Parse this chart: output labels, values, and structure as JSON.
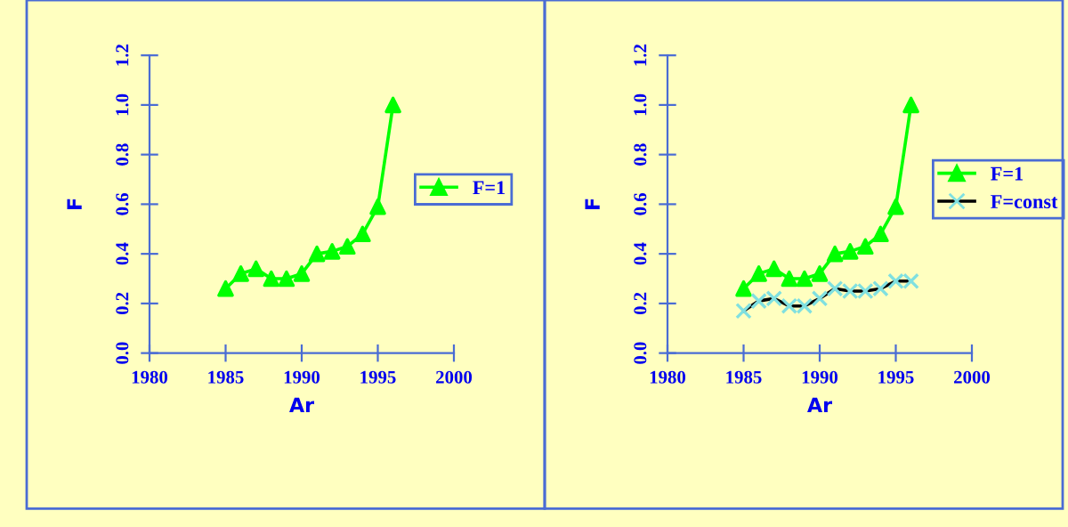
{
  "chart_data": [
    {
      "type": "line",
      "xlabel": "Ar",
      "ylabel": "F",
      "x": [
        1985,
        1986,
        1987,
        1988,
        1989,
        1990,
        1991,
        1992,
        1993,
        1994,
        1995,
        1996
      ],
      "xlim": [
        1980,
        2000
      ],
      "xticks": [
        1980,
        1985,
        1990,
        1995,
        2000
      ],
      "ylim": [
        0,
        1.2
      ],
      "yticks": [
        {
          "value": 0,
          "label": "0.0"
        },
        {
          "value": 0.2,
          "label": "0.2"
        },
        {
          "value": 0.4,
          "label": "0.4"
        },
        {
          "value": 0.6,
          "label": "0.6"
        },
        {
          "value": 0.8,
          "label": "0.8"
        },
        {
          "value": 1.0,
          "label": "1.0"
        },
        {
          "value": 1.2,
          "label": "1.2"
        }
      ],
      "legend": "right",
      "series": [
        {
          "name": "F=1",
          "color": "#00ff00",
          "marker": "triangle",
          "values": [
            0.26,
            0.32,
            0.34,
            0.3,
            0.3,
            0.32,
            0.4,
            0.41,
            0.43,
            0.48,
            0.59,
            1.0
          ]
        }
      ]
    },
    {
      "type": "line",
      "xlabel": "Ar",
      "ylabel": "F",
      "x": [
        1985,
        1986,
        1987,
        1988,
        1989,
        1990,
        1991,
        1992,
        1993,
        1994,
        1995,
        1996
      ],
      "xlim": [
        1980,
        2000
      ],
      "xticks": [
        1980,
        1985,
        1990,
        1995,
        2000
      ],
      "ylim": [
        0,
        1.2
      ],
      "yticks": [
        {
          "value": 0,
          "label": "0.0"
        },
        {
          "value": 0.2,
          "label": "0.2"
        },
        {
          "value": 0.4,
          "label": "0.4"
        },
        {
          "value": 0.6,
          "label": "0.6"
        },
        {
          "value": 0.8,
          "label": "0.8"
        },
        {
          "value": 1.0,
          "label": "1.0"
        },
        {
          "value": 1.2,
          "label": "1.2"
        }
      ],
      "legend": "right",
      "series": [
        {
          "name": "F=1",
          "color": "#00ff00",
          "marker": "triangle",
          "values": [
            0.26,
            0.32,
            0.34,
            0.3,
            0.3,
            0.32,
            0.4,
            0.41,
            0.43,
            0.48,
            0.59,
            1.0
          ]
        },
        {
          "name": "F=const",
          "color": "#000000",
          "marker": "cross",
          "colors": [
            "#80e0e0",
            "#80e0e0",
            "#80e0e0",
            "#80e0e0",
            "#80e0e0",
            "#80e0e0",
            "#80e0e0",
            "#80e0e0",
            "#80e0e0",
            "#80e0e0",
            "#80e0e0",
            "#80e0e0"
          ],
          "values": [
            0.17,
            0.21,
            0.22,
            0.19,
            0.19,
            0.22,
            0.26,
            0.25,
            0.25,
            0.26,
            0.29,
            0.29
          ]
        }
      ]
    }
  ]
}
